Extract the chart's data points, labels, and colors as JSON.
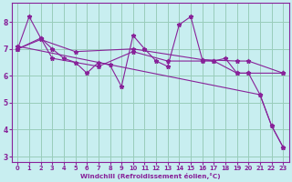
{
  "background_color": "#c8eef0",
  "plot_bg_color": "#c8eef0",
  "line_color": "#882299",
  "grid_color": "#99ccbb",
  "xlabel": "Windchill (Refroidissement éolien,°C)",
  "xlim": [
    -0.5,
    23.5
  ],
  "ylim": [
    2.8,
    8.7
  ],
  "yticks": [
    3,
    4,
    5,
    6,
    7,
    8
  ],
  "xticks": [
    0,
    1,
    2,
    3,
    4,
    5,
    6,
    7,
    8,
    9,
    10,
    11,
    12,
    13,
    14,
    15,
    16,
    17,
    18,
    19,
    20,
    21,
    22,
    23
  ],
  "series": [
    {
      "x": [
        0,
        1,
        2,
        3,
        4,
        5,
        6,
        7,
        8,
        9,
        10,
        11,
        12,
        13,
        14,
        15,
        16,
        17,
        18,
        19,
        20,
        21,
        22,
        23
      ],
      "y": [
        7.0,
        8.2,
        7.4,
        7.0,
        6.65,
        6.5,
        6.1,
        6.5,
        6.4,
        5.6,
        7.5,
        7.0,
        6.55,
        6.35,
        7.9,
        8.2,
        6.6,
        6.55,
        6.65,
        6.1,
        6.1,
        5.3,
        4.15,
        3.35
      ],
      "marker": true
    },
    {
      "x": [
        0,
        21,
        22,
        23
      ],
      "y": [
        7.1,
        5.3,
        4.15,
        3.35
      ],
      "marker": true
    },
    {
      "x": [
        0,
        2,
        3,
        7,
        10,
        13,
        16,
        17,
        19,
        20,
        23
      ],
      "y": [
        7.0,
        7.4,
        6.65,
        6.35,
        6.9,
        6.55,
        6.55,
        6.55,
        6.1,
        6.1,
        6.1
      ],
      "marker": true
    },
    {
      "x": [
        0,
        2,
        5,
        10,
        16,
        19,
        20,
        23
      ],
      "y": [
        7.0,
        7.35,
        6.9,
        7.0,
        6.6,
        6.55,
        6.55,
        6.1
      ],
      "marker": true
    }
  ]
}
